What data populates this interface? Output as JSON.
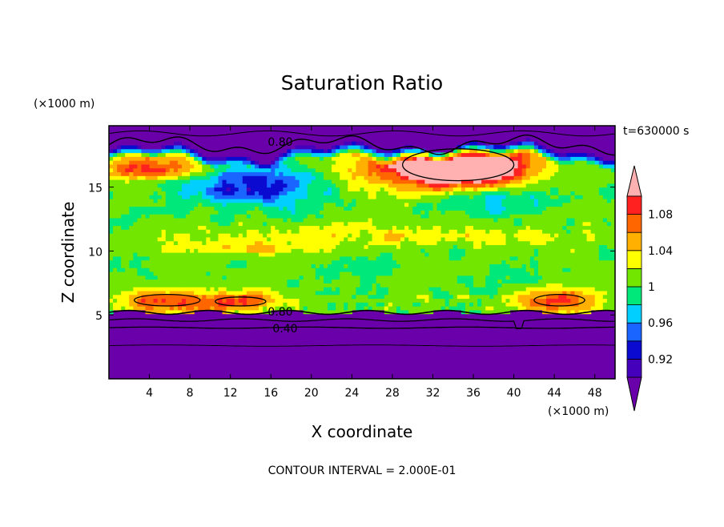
{
  "chart_data": {
    "type": "heatmap",
    "title": "Saturation Ratio",
    "xlabel": "X coordinate",
    "ylabel": "Z coordinate",
    "x_unit": "(×1000 m)",
    "y_unit": "(×1000 m)",
    "xlim": [
      0,
      50
    ],
    "ylim": [
      0,
      19.8
    ],
    "x_ticks": [
      4,
      8,
      12,
      16,
      20,
      24,
      28,
      32,
      36,
      40,
      44,
      48
    ],
    "y_ticks": [
      5,
      10,
      15
    ],
    "time_label": "t=630000 s",
    "footer": "CONTOUR INTERVAL = 2.000E-01",
    "colorbar": {
      "tick_labels": [
        "1.08",
        "1.04",
        "1",
        "0.96",
        "0.92"
      ],
      "colors": [
        "#6a00aa",
        "#4400bb",
        "#0a0ad0",
        "#1a64ff",
        "#00cfff",
        "#00e87a",
        "#73e600",
        "#ffff00",
        "#ffb000",
        "#ff6600",
        "#ff2020",
        "#ffb0b0"
      ]
    },
    "contour_labels": [
      "0.80",
      "0.80",
      "0.40"
    ],
    "structure": {
      "stable_layer_top_km": 5.2,
      "upper_dry_layer_bottom_km": 18.3,
      "supersaturated_patches": [
        {
          "x_km": [
            2.5,
            9
          ],
          "z_km": [
            5.7,
            6.6
          ]
        },
        {
          "x_km": [
            10.5,
            15.5
          ],
          "z_km": [
            5.7,
            6.4
          ]
        },
        {
          "x_km": [
            42,
            47
          ],
          "z_km": [
            5.7,
            6.6
          ]
        },
        {
          "x_km": [
            29,
            40
          ],
          "z_km": [
            15.5,
            18
          ]
        }
      ]
    }
  }
}
